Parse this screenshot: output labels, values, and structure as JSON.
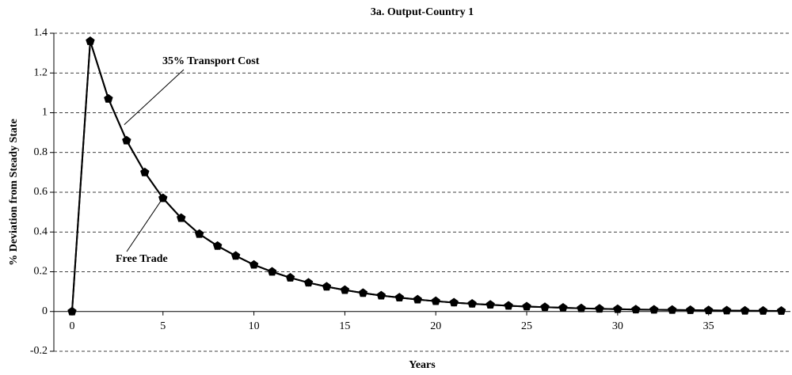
{
  "chart_data": {
    "type": "line",
    "title": "3a. Output-Country 1",
    "x_label": "Years",
    "y_label": "% Deviation from Steady State",
    "x": [
      0,
      1,
      2,
      3,
      4,
      5,
      6,
      7,
      8,
      9,
      10,
      11,
      12,
      13,
      14,
      15,
      16,
      17,
      18,
      19,
      20,
      21,
      22,
      23,
      24,
      25,
      26,
      27,
      28,
      29,
      30,
      31,
      32,
      33,
      34,
      35,
      36,
      37,
      38,
      39
    ],
    "series": [
      {
        "name": "35% Transport Cost",
        "color": "#000000",
        "marker": "pentagon",
        "values": [
          0,
          1.36,
          1.07,
          0.86,
          0.7,
          0.57,
          0.47,
          0.39,
          0.33,
          0.28,
          0.235,
          0.2,
          0.17,
          0.145,
          0.125,
          0.108,
          0.093,
          0.08,
          0.07,
          0.06,
          0.052,
          0.045,
          0.039,
          0.034,
          0.029,
          0.025,
          0.022,
          0.019,
          0.016,
          0.014,
          0.012,
          0.01,
          0.009,
          0.008,
          0.007,
          0.006,
          0.005,
          0.004,
          0.0035,
          0.003
        ]
      },
      {
        "name": "Free Trade",
        "color": "#000000",
        "marker": "diamond",
        "values": [
          0,
          1.36,
          1.07,
          0.86,
          0.7,
          0.57,
          0.47,
          0.39,
          0.33,
          0.28,
          0.235,
          0.2,
          0.17,
          0.145,
          0.125,
          0.108,
          0.093,
          0.08,
          0.07,
          0.06,
          0.052,
          0.045,
          0.039,
          0.034,
          0.029,
          0.025,
          0.022,
          0.019,
          0.016,
          0.014,
          0.012,
          0.01,
          0.009,
          0.008,
          0.007,
          0.006,
          0.005,
          0.004,
          0.0035,
          0.003
        ]
      }
    ],
    "xlim": [
      -1,
      39.5
    ],
    "xticks": [
      0,
      5,
      10,
      15,
      20,
      25,
      30,
      35
    ],
    "ylim": [
      -0.2,
      1.4
    ],
    "yticks": [
      -0.2,
      0,
      0.2,
      0.4,
      0.6,
      0.8,
      1,
      1.2,
      1.4
    ],
    "grid": true
  }
}
